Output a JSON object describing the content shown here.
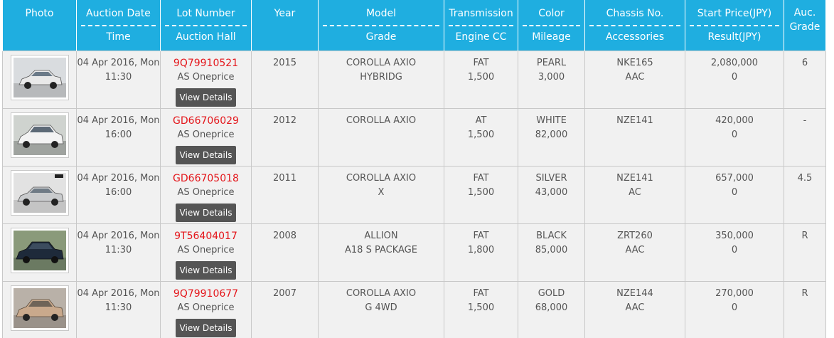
{
  "headers": {
    "photo": "Photo",
    "auction_date": "Auction Date",
    "time": "Time",
    "lot_number": "Lot Number",
    "auction_hall": "Auction Hall",
    "year": "Year",
    "model": "Model",
    "grade": "Grade",
    "transmission": "Transmission",
    "engine_cc": "Engine CC",
    "color": "Color",
    "mileage": "Mileage",
    "chassis": "Chassis No.",
    "accessories": "Accessories",
    "start_price": "Start Price(JPY)",
    "result": "Result(JPY)",
    "auc_grade_1": "Auc.",
    "auc_grade_2": "Grade"
  },
  "view_details_label": "View Details",
  "rows": [
    {
      "car_color": "#e9e9e9",
      "date": "04 Apr 2016, Mon",
      "time": "11:30",
      "lot": "9Q79910521",
      "hall": "AS Oneprice",
      "year": "2015",
      "model": "COROLLA AXIO",
      "grade": "HYBRIDG",
      "transmission": "FAT",
      "engine_cc": "1,500",
      "color": "PEARL",
      "mileage": "3,000",
      "chassis": "NKE165",
      "accessories": "AAC",
      "start_price": "2,080,000",
      "result": "0",
      "auc_grade": "6"
    },
    {
      "car_color": "#f3f3f3",
      "date": "04 Apr 2016, Mon",
      "time": "16:00",
      "lot": "GD66706029",
      "hall": "AS Oneprice",
      "year": "2012",
      "model": "COROLLA AXIO",
      "grade": "",
      "transmission": "AT",
      "engine_cc": "1,500",
      "color": "WHITE",
      "mileage": "82,000",
      "chassis": "NZE141",
      "accessories": "",
      "start_price": "420,000",
      "result": "0",
      "auc_grade": "-"
    },
    {
      "car_color": "#c9cbcd",
      "date": "04 Apr 2016, Mon",
      "time": "16:00",
      "lot": "GD66705018",
      "hall": "AS Oneprice",
      "year": "2011",
      "model": "COROLLA AXIO",
      "grade": "X",
      "transmission": "FAT",
      "engine_cc": "1,500",
      "color": "SILVER",
      "mileage": "43,000",
      "chassis": "NZE141",
      "accessories": "AC",
      "start_price": "657,000",
      "result": "0",
      "auc_grade": "4.5"
    },
    {
      "car_color": "#1e2a3a",
      "date": "04 Apr 2016, Mon",
      "time": "11:30",
      "lot": "9T56404017",
      "hall": "AS Oneprice",
      "year": "2008",
      "model": "ALLION",
      "grade": "A18 S PACKAGE",
      "transmission": "FAT",
      "engine_cc": "1,800",
      "color": "BLACK",
      "mileage": "85,000",
      "chassis": "ZRT260",
      "accessories": "AAC",
      "start_price": "350,000",
      "result": "0",
      "auc_grade": "R"
    },
    {
      "car_color": "#c9a98c",
      "date": "04 Apr 2016, Mon",
      "time": "11:30",
      "lot": "9Q79910677",
      "hall": "AS Oneprice",
      "year": "2007",
      "model": "COROLLA AXIO",
      "grade": "G 4WD",
      "transmission": "FAT",
      "engine_cc": "1,500",
      "color": "GOLD",
      "mileage": "68,000",
      "chassis": "NZE144",
      "accessories": "AAC",
      "start_price": "270,000",
      "result": "0",
      "auc_grade": "R"
    }
  ]
}
